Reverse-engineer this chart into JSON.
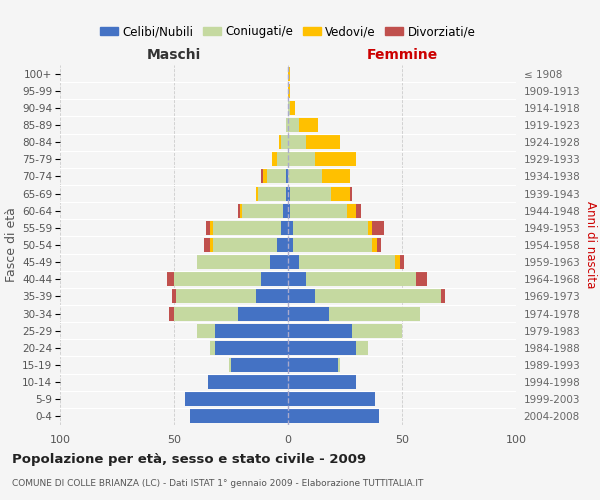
{
  "age_groups": [
    "0-4",
    "5-9",
    "10-14",
    "15-19",
    "20-24",
    "25-29",
    "30-34",
    "35-39",
    "40-44",
    "45-49",
    "50-54",
    "55-59",
    "60-64",
    "65-69",
    "70-74",
    "75-79",
    "80-84",
    "85-89",
    "90-94",
    "95-99",
    "100+"
  ],
  "birth_years": [
    "2004-2008",
    "1999-2003",
    "1994-1998",
    "1989-1993",
    "1984-1988",
    "1979-1983",
    "1974-1978",
    "1969-1973",
    "1964-1968",
    "1959-1963",
    "1954-1958",
    "1949-1953",
    "1944-1948",
    "1939-1943",
    "1934-1938",
    "1929-1933",
    "1924-1928",
    "1919-1923",
    "1914-1918",
    "1909-1913",
    "≤ 1908"
  ],
  "male_celibe": [
    43,
    45,
    35,
    25,
    32,
    32,
    22,
    14,
    12,
    8,
    5,
    3,
    2,
    1,
    1,
    0,
    0,
    0,
    0,
    0,
    0
  ],
  "male_coniugato": [
    0,
    0,
    0,
    1,
    2,
    8,
    28,
    35,
    38,
    32,
    28,
    30,
    18,
    12,
    8,
    5,
    3,
    1,
    0,
    0,
    0
  ],
  "male_vedovo": [
    0,
    0,
    0,
    0,
    0,
    0,
    0,
    0,
    0,
    0,
    1,
    1,
    1,
    1,
    2,
    2,
    1,
    0,
    0,
    0,
    0
  ],
  "male_divorziato": [
    0,
    0,
    0,
    0,
    0,
    0,
    2,
    2,
    3,
    0,
    3,
    2,
    1,
    0,
    1,
    0,
    0,
    0,
    0,
    0,
    0
  ],
  "female_nubile": [
    40,
    38,
    30,
    22,
    30,
    28,
    18,
    12,
    8,
    5,
    2,
    2,
    1,
    1,
    0,
    0,
    0,
    0,
    0,
    0,
    0
  ],
  "female_coniugata": [
    0,
    0,
    0,
    1,
    5,
    22,
    40,
    55,
    48,
    42,
    35,
    33,
    25,
    18,
    15,
    12,
    8,
    5,
    1,
    0,
    0
  ],
  "female_vedova": [
    0,
    0,
    0,
    0,
    0,
    0,
    0,
    0,
    0,
    2,
    2,
    2,
    4,
    8,
    12,
    18,
    15,
    8,
    2,
    1,
    1
  ],
  "female_divorziata": [
    0,
    0,
    0,
    0,
    0,
    0,
    0,
    2,
    5,
    2,
    2,
    5,
    2,
    1,
    0,
    0,
    0,
    0,
    0,
    0,
    0
  ],
  "color_celibe": "#4472c4",
  "color_coniugato": "#c5d9a0",
  "color_vedovo": "#ffc000",
  "color_divorziato": "#c0504d",
  "legend_labels": [
    "Celibi/Nubili",
    "Coniugati/e",
    "Vedovi/e",
    "Divorziati/e"
  ],
  "xlabel_left": "Maschi",
  "xlabel_right": "Femmine",
  "ylabel_left": "Fasce di età",
  "ylabel_right": "Anni di nascita",
  "title": "Popolazione per età, sesso e stato civile - 2009",
  "subtitle": "COMUNE DI COLLE BRIANZA (LC) - Dati ISTAT 1° gennaio 2009 - Elaborazione TUTTITALIA.IT",
  "xlim": 100,
  "bg_color": "#f5f5f5",
  "grid_color": "#cccccc"
}
